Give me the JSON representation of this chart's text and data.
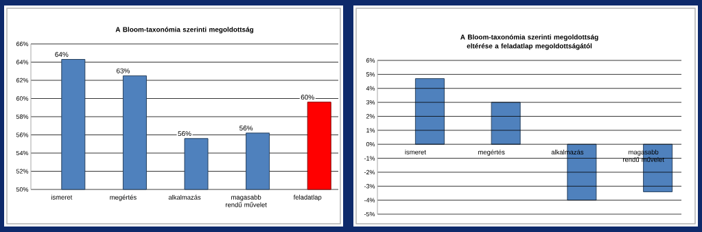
{
  "chart_data": [
    {
      "type": "bar",
      "title": "A Bloom-taxonómia szerinti megoldottság",
      "categories": [
        "ismeret",
        "megértés",
        "alkalmazás",
        "magasabb rendű művelet",
        "feladatlap"
      ],
      "values": [
        64.3,
        62.5,
        55.6,
        56.2,
        59.6
      ],
      "colors": [
        "#4f81bd",
        "#4f81bd",
        "#4f81bd",
        "#4f81bd",
        "#ff0000"
      ],
      "value_labels": [
        "64%",
        "63%",
        "56%",
        "56%",
        "60%"
      ],
      "ylim": [
        50,
        66
      ],
      "yticks": [
        {
          "value": 50,
          "label": "50%"
        },
        {
          "value": 52,
          "label": "52%"
        },
        {
          "value": 54,
          "label": "54%"
        },
        {
          "value": 56,
          "label": "56%"
        },
        {
          "value": 58,
          "label": "58%"
        },
        {
          "value": 60,
          "label": "60%"
        },
        {
          "value": 62,
          "label": "62%"
        },
        {
          "value": 64,
          "label": "64%"
        },
        {
          "value": 66,
          "label": "66%"
        }
      ],
      "grid": "y"
    },
    {
      "type": "bar",
      "title": "A Bloom-taxonómia szerinti megoldottság eltérése a feladatlap megoldottságától",
      "categories": [
        "ismeret",
        "megértés",
        "alkalmazás",
        "magasabb rendű művelet"
      ],
      "values": [
        4.7,
        3.0,
        -4.0,
        -3.4
      ],
      "color": "#4f81bd",
      "ylim": [
        -5,
        6
      ],
      "yticks": [
        {
          "value": -5,
          "label": "-5%"
        },
        {
          "value": -4,
          "label": "-4%"
        },
        {
          "value": -3,
          "label": "-3%"
        },
        {
          "value": -2,
          "label": "-2%"
        },
        {
          "value": -1,
          "label": "-1%"
        },
        {
          "value": 0,
          "label": "0%"
        },
        {
          "value": 1,
          "label": "1%"
        },
        {
          "value": 2,
          "label": "2%"
        },
        {
          "value": 3,
          "label": "3%"
        },
        {
          "value": 4,
          "label": "4%"
        },
        {
          "value": 5,
          "label": "5%"
        },
        {
          "value": 6,
          "label": "6%"
        }
      ],
      "grid": "y"
    }
  ]
}
